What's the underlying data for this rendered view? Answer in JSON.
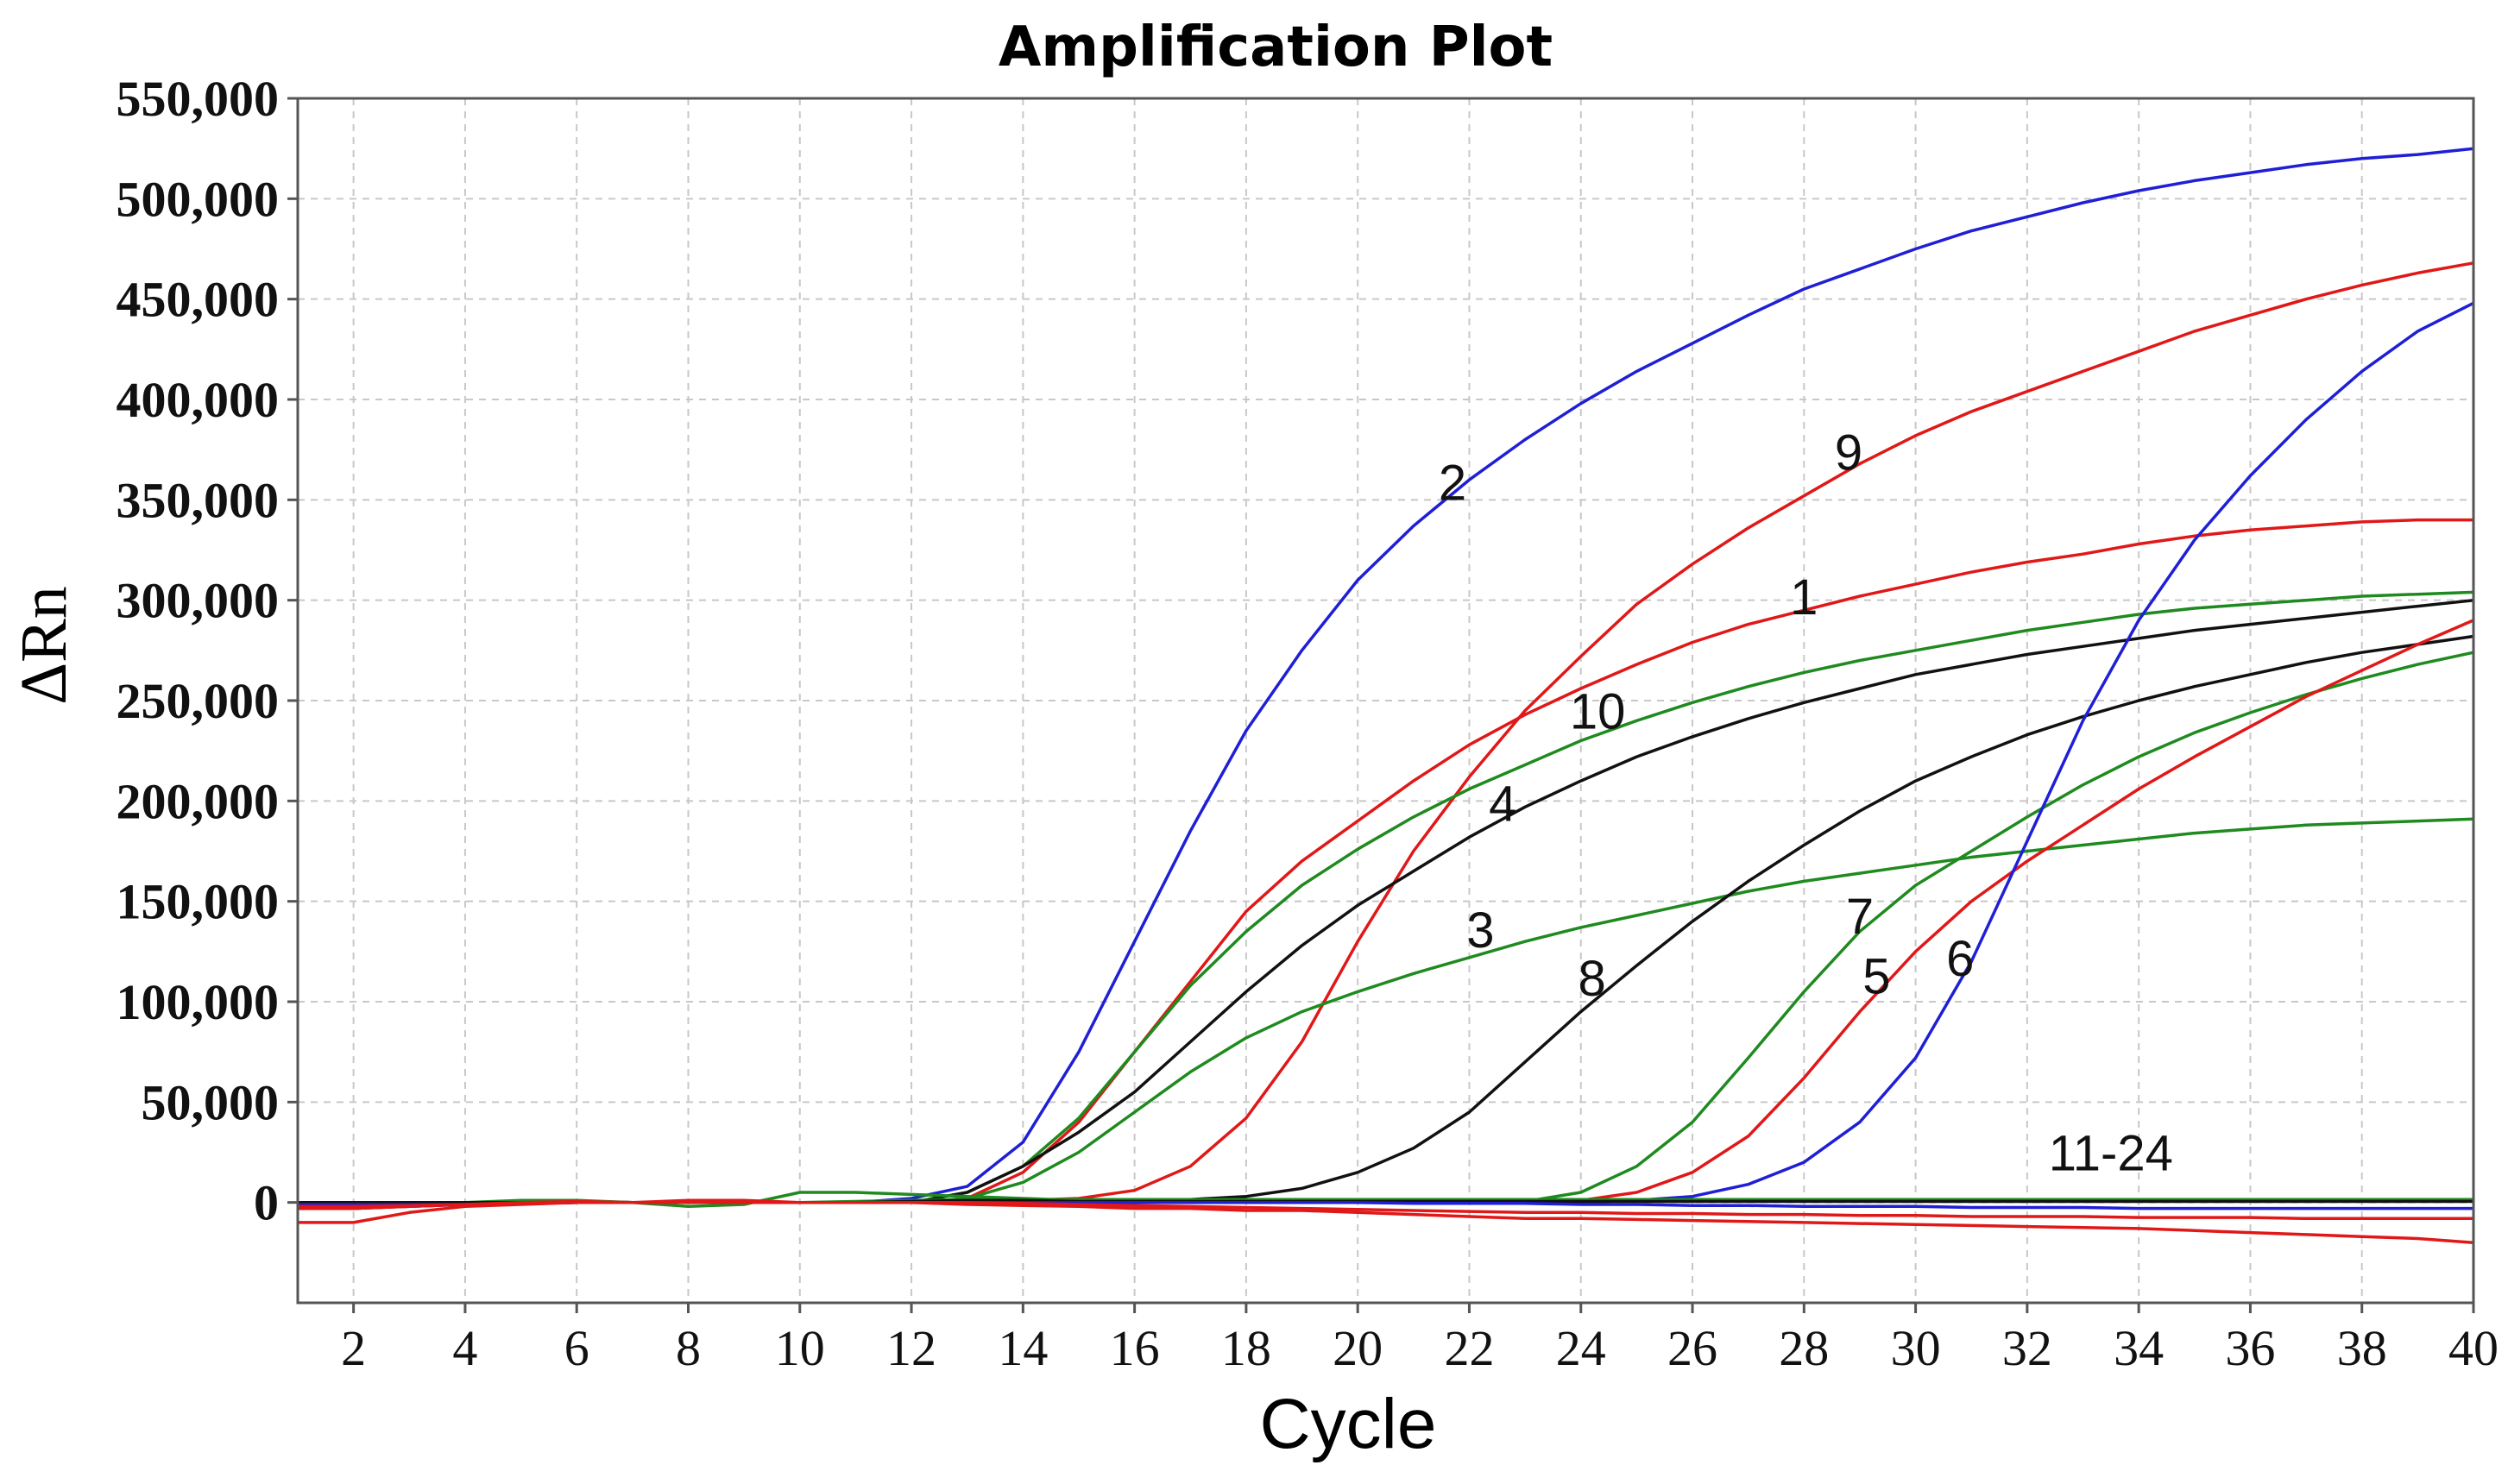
{
  "chart_data": {
    "type": "line",
    "title": "Amplification Plot",
    "xlabel": "Cycle",
    "ylabel": "ΔRn",
    "xlim": [
      1,
      40
    ],
    "ylim": [
      -50000,
      550000
    ],
    "x_ticks": [
      2,
      4,
      6,
      8,
      10,
      12,
      14,
      16,
      18,
      20,
      22,
      24,
      26,
      28,
      30,
      32,
      34,
      36,
      38,
      40
    ],
    "x_tick_labels": [
      "2",
      "4",
      "6",
      "8",
      "10",
      "12",
      "14",
      "16",
      "18",
      "20",
      "22",
      "24",
      "26",
      "28",
      "30",
      "32",
      "34",
      "36",
      "38",
      "40"
    ],
    "y_ticks": [
      0,
      50000,
      100000,
      150000,
      200000,
      250000,
      300000,
      350000,
      400000,
      450000,
      500000,
      550000
    ],
    "y_tick_labels": [
      "0",
      "50,000",
      "100,000",
      "150,000",
      "200,000",
      "250,000",
      "300,000",
      "350,000",
      "400,000",
      "450,000",
      "500,000",
      "550,000"
    ],
    "grid": true,
    "colors": {
      "blue": "#1f1fd6",
      "red": "#e01818",
      "green": "#1f8a1f",
      "black": "#111111",
      "grid": "#c8c8c8",
      "axis": "#555555"
    },
    "x": [
      1,
      2,
      3,
      4,
      5,
      6,
      7,
      8,
      9,
      10,
      11,
      12,
      13,
      14,
      15,
      16,
      17,
      18,
      19,
      20,
      21,
      22,
      23,
      24,
      25,
      26,
      27,
      28,
      29,
      30,
      31,
      32,
      33,
      34,
      35,
      36,
      37,
      38,
      39,
      40
    ],
    "series": [
      {
        "name": "2",
        "color": "blue",
        "values": [
          -2000,
          -2000,
          -1500,
          -1000,
          -500,
          0,
          0,
          0,
          0,
          0,
          0,
          2000,
          8000,
          30000,
          75000,
          130000,
          185000,
          235000,
          275000,
          310000,
          337000,
          360000,
          380000,
          398000,
          414000,
          428000,
          442000,
          455000,
          465000,
          475000,
          484000,
          491000,
          498000,
          504000,
          509000,
          513000,
          517000,
          520000,
          522000,
          525000
        ]
      },
      {
        "name": "9",
        "color": "red",
        "values": [
          -3000,
          -3000,
          -2000,
          -1000,
          0,
          500,
          0,
          0,
          0,
          0,
          0,
          0,
          0,
          1000,
          2000,
          6000,
          18000,
          42000,
          80000,
          130000,
          175000,
          212000,
          245000,
          272000,
          298000,
          318000,
          336000,
          352000,
          368000,
          382000,
          394000,
          404000,
          414000,
          424000,
          434000,
          442000,
          450000,
          457000,
          463000,
          468000
        ]
      },
      {
        "name": "1",
        "color": "red",
        "values": [
          -3000,
          -3000,
          -2000,
          -1000,
          0,
          500,
          0,
          0,
          0,
          0,
          0,
          0,
          2000,
          15000,
          40000,
          75000,
          110000,
          145000,
          170000,
          190000,
          210000,
          228000,
          243000,
          256000,
          268000,
          279000,
          288000,
          295000,
          302000,
          308000,
          314000,
          319000,
          323000,
          328000,
          332000,
          335000,
          337000,
          339000,
          340000,
          340000
        ]
      },
      {
        "name": "10",
        "color": "green",
        "values": [
          -2000,
          -2000,
          -1500,
          -1000,
          0,
          0,
          0,
          0,
          0,
          0,
          0,
          0,
          5000,
          18000,
          42000,
          75000,
          108000,
          135000,
          158000,
          176000,
          192000,
          206000,
          218000,
          230000,
          240000,
          249000,
          257000,
          264000,
          270000,
          275000,
          280000,
          285000,
          289000,
          293000,
          296000,
          298000,
          300000,
          302000,
          303000,
          304000
        ]
      },
      {
        "name": "4",
        "color": "black",
        "values": [
          -1000,
          -1000,
          -1000,
          -1000,
          -500,
          0,
          0,
          0,
          0,
          0,
          0,
          0,
          5000,
          18000,
          35000,
          55000,
          80000,
          105000,
          128000,
          148000,
          165000,
          182000,
          197000,
          210000,
          222000,
          232000,
          241000,
          249000,
          256000,
          263000,
          268000,
          273000,
          277000,
          281000,
          285000,
          288000,
          291000,
          294000,
          297000,
          300000
        ]
      },
      {
        "name": "3",
        "color": "green",
        "values": [
          -2000,
          -2000,
          -1500,
          -1000,
          0,
          500,
          0,
          0,
          0,
          0,
          0,
          0,
          2000,
          10000,
          25000,
          45000,
          65000,
          82000,
          95000,
          105000,
          114000,
          122000,
          130000,
          137000,
          143000,
          149000,
          155000,
          160000,
          164000,
          168000,
          172000,
          175000,
          178000,
          181000,
          184000,
          186000,
          188000,
          189000,
          190000,
          191000
        ]
      },
      {
        "name": "8",
        "color": "black",
        "values": [
          -1000,
          -1000,
          -1000,
          -1000,
          -500,
          0,
          0,
          0,
          0,
          0,
          0,
          0,
          0,
          0,
          0,
          500,
          1500,
          3000,
          7000,
          15000,
          27000,
          45000,
          70000,
          95000,
          118000,
          140000,
          160000,
          178000,
          195000,
          210000,
          222000,
          233000,
          242000,
          250000,
          257000,
          263000,
          269000,
          274000,
          278000,
          282000
        ]
      },
      {
        "name": "7",
        "color": "green",
        "values": [
          -2000,
          -2000,
          -1500,
          -1000,
          0,
          0,
          0,
          0,
          0,
          0,
          0,
          0,
          0,
          0,
          0,
          0,
          0,
          0,
          0,
          0,
          0,
          0,
          500,
          5000,
          18000,
          40000,
          72000,
          105000,
          135000,
          158000,
          175000,
          192000,
          208000,
          222000,
          234000,
          244000,
          253000,
          261000,
          268000,
          274000
        ]
      },
      {
        "name": "5",
        "color": "red",
        "values": [
          -3000,
          -3000,
          -2000,
          -1000,
          0,
          0,
          0,
          0,
          0,
          0,
          0,
          0,
          0,
          0,
          0,
          0,
          0,
          0,
          0,
          0,
          0,
          0,
          0,
          1000,
          5000,
          15000,
          33000,
          62000,
          95000,
          125000,
          150000,
          170000,
          188000,
          206000,
          222000,
          237000,
          252000,
          265000,
          278000,
          290000
        ]
      },
      {
        "name": "6",
        "color": "blue",
        "values": [
          -2000,
          -2000,
          -1500,
          -1000,
          0,
          0,
          0,
          0,
          0,
          0,
          0,
          0,
          0,
          0,
          0,
          0,
          0,
          0,
          0,
          0,
          0,
          0,
          0,
          0,
          1000,
          3000,
          9000,
          20000,
          40000,
          72000,
          120000,
          180000,
          240000,
          290000,
          330000,
          362000,
          390000,
          414000,
          434000,
          448000
        ]
      },
      {
        "name": "11-24 (a)",
        "color": "green",
        "values": [
          -2000,
          -2000,
          -1500,
          0,
          1000,
          1000,
          0,
          -2000,
          -1000,
          5000,
          5000,
          4000,
          3000,
          2000,
          1000,
          1000,
          1000,
          1000,
          1000,
          1000,
          1000,
          1000,
          1000,
          1000,
          1000,
          1000,
          1000,
          1000,
          1000,
          1000,
          1000,
          1000,
          1000,
          1000,
          1000,
          1000,
          1000,
          1000,
          1000,
          1000
        ]
      },
      {
        "name": "11-24 (b)",
        "color": "green",
        "values": [
          -1000,
          -1000,
          -1000,
          -500,
          0,
          0,
          0,
          0,
          0,
          0,
          500,
          1000,
          1500,
          1500,
          1500,
          1500,
          1500,
          1500,
          1500,
          1500,
          1500,
          1500,
          1500,
          1500,
          1500,
          1500,
          1500,
          1500,
          1500,
          1500,
          1500,
          1500,
          1500,
          1500,
          1500,
          1500,
          1500,
          1500,
          1500,
          1500
        ]
      },
      {
        "name": "11-24 (c)",
        "color": "black",
        "values": [
          0,
          0,
          0,
          0,
          0,
          0,
          0,
          0,
          0,
          0,
          0,
          500,
          1000,
          1000,
          500,
          500,
          500,
          500,
          500,
          500,
          500,
          500,
          500,
          500,
          500,
          500,
          500,
          500,
          500,
          500,
          500,
          500,
          500,
          500,
          500,
          500,
          500,
          500,
          500,
          500
        ]
      },
      {
        "name": "11-24 (d)",
        "color": "blue",
        "values": [
          -1000,
          -1000,
          -1000,
          -1000,
          -500,
          0,
          0,
          0,
          0,
          0,
          0,
          0,
          0,
          0,
          0,
          0,
          0,
          0,
          0,
          0,
          -500,
          -500,
          -500,
          -1000,
          -1000,
          -1500,
          -1500,
          -2000,
          -2000,
          -2000,
          -2500,
          -2500,
          -2500,
          -3000,
          -3000,
          -3000,
          -3000,
          -3000,
          -3000,
          -3000
        ]
      },
      {
        "name": "11-24 (e)",
        "color": "red",
        "values": [
          -2000,
          -2000,
          -1500,
          -1000,
          0,
          500,
          0,
          0,
          0,
          0,
          0,
          0,
          0,
          -500,
          -1000,
          -1500,
          -2000,
          -2500,
          -3000,
          -3500,
          -4000,
          -4500,
          -5000,
          -5000,
          -5500,
          -5500,
          -6000,
          -6000,
          -6500,
          -6500,
          -7000,
          -7000,
          -7000,
          -7500,
          -7500,
          -7500,
          -8000,
          -8000,
          -8000,
          -8000
        ]
      },
      {
        "name": "11-24 (f)",
        "color": "red",
        "values": [
          -10000,
          -10000,
          -5000,
          -2000,
          -1000,
          0,
          0,
          1000,
          1000,
          0,
          0,
          0,
          -1000,
          -1500,
          -2000,
          -3000,
          -3000,
          -4000,
          -4000,
          -5000,
          -6000,
          -7000,
          -8000,
          -8000,
          -8500,
          -9000,
          -9500,
          -10000,
          -10500,
          -11000,
          -11500,
          -12000,
          -12500,
          -13000,
          -14000,
          -15000,
          -16000,
          -17000,
          -18000,
          -20000
        ]
      }
    ],
    "annotations": [
      {
        "text": "2",
        "x": 21.7,
        "y": 350000
      },
      {
        "text": "9",
        "x": 28.8,
        "y": 365000
      },
      {
        "text": "1",
        "x": 28.0,
        "y": 293000
      },
      {
        "text": "10",
        "x": 24.3,
        "y": 236000
      },
      {
        "text": "4",
        "x": 22.6,
        "y": 190000
      },
      {
        "text": "3",
        "x": 22.2,
        "y": 127000
      },
      {
        "text": "8",
        "x": 24.2,
        "y": 103000
      },
      {
        "text": "7",
        "x": 29.0,
        "y": 134000
      },
      {
        "text": "5",
        "x": 29.3,
        "y": 104000
      },
      {
        "text": "6",
        "x": 30.8,
        "y": 113000
      },
      {
        "text": "11-24",
        "x": 33.5,
        "y": 16000
      }
    ]
  }
}
